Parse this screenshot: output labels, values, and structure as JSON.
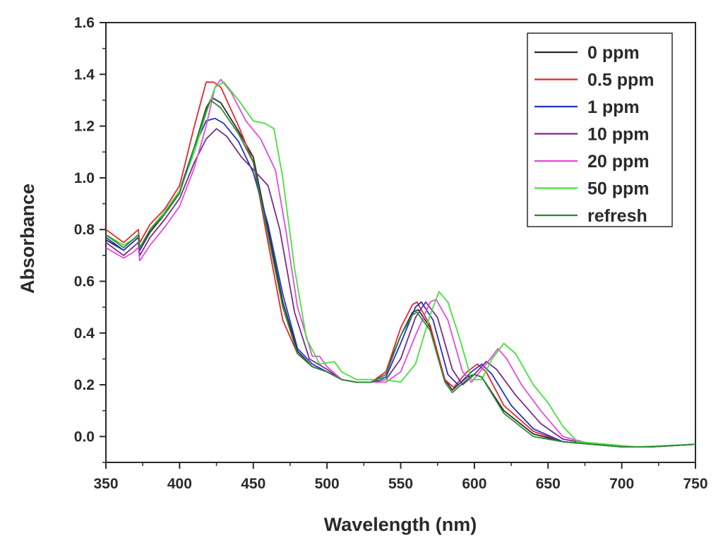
{
  "chart_data": {
    "type": "line",
    "title": "",
    "xlabel": "Wavelength (nm)",
    "ylabel": "Absorbance",
    "xlim": [
      350,
      750
    ],
    "ylim": [
      -0.1,
      1.6
    ],
    "xticks": [
      350,
      400,
      450,
      500,
      550,
      600,
      650,
      700,
      750
    ],
    "yticks": [
      0.0,
      0.2,
      0.4,
      0.6,
      0.8,
      1.0,
      1.2,
      1.4,
      1.6
    ],
    "ytick_labels": [
      "0.0",
      "0.2",
      "0.4",
      "0.6",
      "0.8",
      "1.0",
      "1.2",
      "1.4",
      "1.6"
    ],
    "legend": {
      "position": "top-right"
    },
    "series": [
      {
        "name": "0 ppm",
        "color": "#2b2b2b",
        "points": [
          [
            350,
            0.76
          ],
          [
            362,
            0.72
          ],
          [
            368,
            0.75
          ],
          [
            372,
            0.77
          ],
          [
            373,
            0.72
          ],
          [
            380,
            0.79
          ],
          [
            390,
            0.86
          ],
          [
            400,
            0.95
          ],
          [
            410,
            1.12
          ],
          [
            418,
            1.27
          ],
          [
            422,
            1.31
          ],
          [
            428,
            1.29
          ],
          [
            440,
            1.18
          ],
          [
            450,
            1.08
          ],
          [
            460,
            0.8
          ],
          [
            470,
            0.52
          ],
          [
            480,
            0.33
          ],
          [
            490,
            0.27
          ],
          [
            500,
            0.25
          ],
          [
            510,
            0.22
          ],
          [
            520,
            0.21
          ],
          [
            530,
            0.21
          ],
          [
            540,
            0.25
          ],
          [
            550,
            0.39
          ],
          [
            558,
            0.48
          ],
          [
            562,
            0.49
          ],
          [
            570,
            0.42
          ],
          [
            580,
            0.22
          ],
          [
            585,
            0.18
          ],
          [
            595,
            0.23
          ],
          [
            600,
            0.24
          ],
          [
            605,
            0.23
          ],
          [
            620,
            0.1
          ],
          [
            640,
            0.01
          ],
          [
            660,
            -0.02
          ],
          [
            680,
            -0.03
          ],
          [
            700,
            -0.04
          ],
          [
            720,
            -0.04
          ],
          [
            750,
            -0.03
          ]
        ]
      },
      {
        "name": "0.5 ppm",
        "color": "#e8262d",
        "points": [
          [
            350,
            0.8
          ],
          [
            362,
            0.75
          ],
          [
            368,
            0.78
          ],
          [
            372,
            0.8
          ],
          [
            373,
            0.75
          ],
          [
            380,
            0.82
          ],
          [
            390,
            0.88
          ],
          [
            400,
            0.97
          ],
          [
            410,
            1.2
          ],
          [
            418,
            1.37
          ],
          [
            423,
            1.37
          ],
          [
            428,
            1.35
          ],
          [
            440,
            1.2
          ],
          [
            450,
            1.06
          ],
          [
            460,
            0.75
          ],
          [
            470,
            0.45
          ],
          [
            480,
            0.32
          ],
          [
            490,
            0.27
          ],
          [
            500,
            0.25
          ],
          [
            510,
            0.22
          ],
          [
            520,
            0.21
          ],
          [
            530,
            0.21
          ],
          [
            540,
            0.25
          ],
          [
            550,
            0.42
          ],
          [
            558,
            0.51
          ],
          [
            561,
            0.52
          ],
          [
            570,
            0.43
          ],
          [
            580,
            0.22
          ],
          [
            586,
            0.19
          ],
          [
            595,
            0.25
          ],
          [
            602,
            0.28
          ],
          [
            608,
            0.25
          ],
          [
            620,
            0.12
          ],
          [
            640,
            0.02
          ],
          [
            660,
            -0.02
          ],
          [
            680,
            -0.03
          ],
          [
            700,
            -0.04
          ],
          [
            720,
            -0.04
          ],
          [
            750,
            -0.03
          ]
        ]
      },
      {
        "name": "1 ppm",
        "color": "#2433c8",
        "points": [
          [
            350,
            0.77
          ],
          [
            362,
            0.72
          ],
          [
            368,
            0.75
          ],
          [
            372,
            0.77
          ],
          [
            373,
            0.72
          ],
          [
            380,
            0.8
          ],
          [
            390,
            0.87
          ],
          [
            400,
            0.95
          ],
          [
            410,
            1.12
          ],
          [
            418,
            1.22
          ],
          [
            424,
            1.23
          ],
          [
            430,
            1.21
          ],
          [
            440,
            1.14
          ],
          [
            450,
            1.02
          ],
          [
            460,
            0.82
          ],
          [
            470,
            0.55
          ],
          [
            480,
            0.34
          ],
          [
            490,
            0.28
          ],
          [
            500,
            0.25
          ],
          [
            510,
            0.22
          ],
          [
            520,
            0.21
          ],
          [
            530,
            0.21
          ],
          [
            540,
            0.23
          ],
          [
            550,
            0.36
          ],
          [
            560,
            0.5
          ],
          [
            564,
            0.52
          ],
          [
            572,
            0.45
          ],
          [
            582,
            0.24
          ],
          [
            589,
            0.2
          ],
          [
            598,
            0.25
          ],
          [
            605,
            0.28
          ],
          [
            612,
            0.24
          ],
          [
            625,
            0.12
          ],
          [
            640,
            0.03
          ],
          [
            660,
            -0.02
          ],
          [
            680,
            -0.03
          ],
          [
            700,
            -0.04
          ],
          [
            720,
            -0.04
          ],
          [
            750,
            -0.03
          ]
        ]
      },
      {
        "name": "10 ppm",
        "color": "#7a2a8a",
        "points": [
          [
            350,
            0.75
          ],
          [
            362,
            0.7
          ],
          [
            368,
            0.73
          ],
          [
            372,
            0.75
          ],
          [
            373,
            0.7
          ],
          [
            380,
            0.77
          ],
          [
            390,
            0.84
          ],
          [
            400,
            0.92
          ],
          [
            410,
            1.06
          ],
          [
            418,
            1.15
          ],
          [
            425,
            1.19
          ],
          [
            432,
            1.16
          ],
          [
            442,
            1.08
          ],
          [
            452,
            1.02
          ],
          [
            460,
            0.97
          ],
          [
            468,
            0.8
          ],
          [
            478,
            0.48
          ],
          [
            488,
            0.3
          ],
          [
            500,
            0.26
          ],
          [
            510,
            0.22
          ],
          [
            520,
            0.21
          ],
          [
            530,
            0.21
          ],
          [
            540,
            0.22
          ],
          [
            550,
            0.3
          ],
          [
            560,
            0.46
          ],
          [
            567,
            0.52
          ],
          [
            575,
            0.46
          ],
          [
            585,
            0.26
          ],
          [
            592,
            0.2
          ],
          [
            600,
            0.24
          ],
          [
            608,
            0.29
          ],
          [
            615,
            0.26
          ],
          [
            628,
            0.16
          ],
          [
            645,
            0.05
          ],
          [
            660,
            -0.01
          ],
          [
            680,
            -0.03
          ],
          [
            700,
            -0.04
          ],
          [
            720,
            -0.04
          ],
          [
            750,
            -0.03
          ]
        ]
      },
      {
        "name": "20 ppm",
        "color": "#e34ae0",
        "points": [
          [
            350,
            0.73
          ],
          [
            362,
            0.69
          ],
          [
            368,
            0.71
          ],
          [
            372,
            0.73
          ],
          [
            373,
            0.68
          ],
          [
            380,
            0.74
          ],
          [
            390,
            0.81
          ],
          [
            400,
            0.89
          ],
          [
            410,
            1.04
          ],
          [
            418,
            1.2
          ],
          [
            424,
            1.35
          ],
          [
            428,
            1.38
          ],
          [
            435,
            1.33
          ],
          [
            445,
            1.22
          ],
          [
            455,
            1.15
          ],
          [
            465,
            1.03
          ],
          [
            472,
            0.8
          ],
          [
            480,
            0.5
          ],
          [
            490,
            0.31
          ],
          [
            495,
            0.31
          ],
          [
            500,
            0.27
          ],
          [
            510,
            0.22
          ],
          [
            520,
            0.21
          ],
          [
            530,
            0.21
          ],
          [
            540,
            0.21
          ],
          [
            550,
            0.25
          ],
          [
            560,
            0.39
          ],
          [
            570,
            0.52
          ],
          [
            574,
            0.53
          ],
          [
            582,
            0.45
          ],
          [
            592,
            0.25
          ],
          [
            598,
            0.21
          ],
          [
            608,
            0.28
          ],
          [
            616,
            0.34
          ],
          [
            622,
            0.3
          ],
          [
            632,
            0.2
          ],
          [
            645,
            0.1
          ],
          [
            660,
            0.0
          ],
          [
            680,
            -0.03
          ],
          [
            700,
            -0.04
          ],
          [
            720,
            -0.04
          ],
          [
            750,
            -0.03
          ]
        ]
      },
      {
        "name": "50 ppm",
        "color": "#43e33a",
        "points": [
          [
            350,
            0.78
          ],
          [
            362,
            0.74
          ],
          [
            368,
            0.76
          ],
          [
            372,
            0.78
          ],
          [
            373,
            0.73
          ],
          [
            380,
            0.8
          ],
          [
            390,
            0.87
          ],
          [
            400,
            0.95
          ],
          [
            410,
            1.1
          ],
          [
            418,
            1.25
          ],
          [
            424,
            1.35
          ],
          [
            430,
            1.37
          ],
          [
            440,
            1.3
          ],
          [
            450,
            1.22
          ],
          [
            458,
            1.21
          ],
          [
            464,
            1.19
          ],
          [
            470,
            1.0
          ],
          [
            478,
            0.65
          ],
          [
            486,
            0.38
          ],
          [
            495,
            0.28
          ],
          [
            505,
            0.29
          ],
          [
            510,
            0.25
          ],
          [
            520,
            0.22
          ],
          [
            530,
            0.22
          ],
          [
            540,
            0.22
          ],
          [
            550,
            0.21
          ],
          [
            560,
            0.28
          ],
          [
            570,
            0.47
          ],
          [
            576,
            0.56
          ],
          [
            582,
            0.52
          ],
          [
            590,
            0.38
          ],
          [
            598,
            0.22
          ],
          [
            605,
            0.22
          ],
          [
            612,
            0.3
          ],
          [
            620,
            0.36
          ],
          [
            628,
            0.32
          ],
          [
            640,
            0.2
          ],
          [
            650,
            0.13
          ],
          [
            660,
            0.04
          ],
          [
            670,
            -0.02
          ],
          [
            690,
            -0.03
          ],
          [
            710,
            -0.04
          ],
          [
            750,
            -0.03
          ]
        ]
      },
      {
        "name": "refresh",
        "color": "#2a8a33",
        "points": [
          [
            350,
            0.78
          ],
          [
            362,
            0.73
          ],
          [
            368,
            0.76
          ],
          [
            372,
            0.78
          ],
          [
            373,
            0.73
          ],
          [
            380,
            0.8
          ],
          [
            390,
            0.86
          ],
          [
            400,
            0.94
          ],
          [
            410,
            1.12
          ],
          [
            418,
            1.26
          ],
          [
            421,
            1.3
          ],
          [
            428,
            1.27
          ],
          [
            440,
            1.17
          ],
          [
            450,
            1.06
          ],
          [
            460,
            0.78
          ],
          [
            470,
            0.5
          ],
          [
            480,
            0.32
          ],
          [
            490,
            0.27
          ],
          [
            500,
            0.25
          ],
          [
            510,
            0.22
          ],
          [
            520,
            0.21
          ],
          [
            530,
            0.21
          ],
          [
            540,
            0.24
          ],
          [
            550,
            0.39
          ],
          [
            558,
            0.47
          ],
          [
            561,
            0.48
          ],
          [
            570,
            0.41
          ],
          [
            580,
            0.21
          ],
          [
            585,
            0.17
          ],
          [
            595,
            0.22
          ],
          [
            600,
            0.24
          ],
          [
            605,
            0.23
          ],
          [
            620,
            0.09
          ],
          [
            640,
            0.0
          ],
          [
            660,
            -0.02
          ],
          [
            680,
            -0.03
          ],
          [
            700,
            -0.04
          ],
          [
            720,
            -0.04
          ],
          [
            750,
            -0.03
          ]
        ]
      }
    ]
  }
}
